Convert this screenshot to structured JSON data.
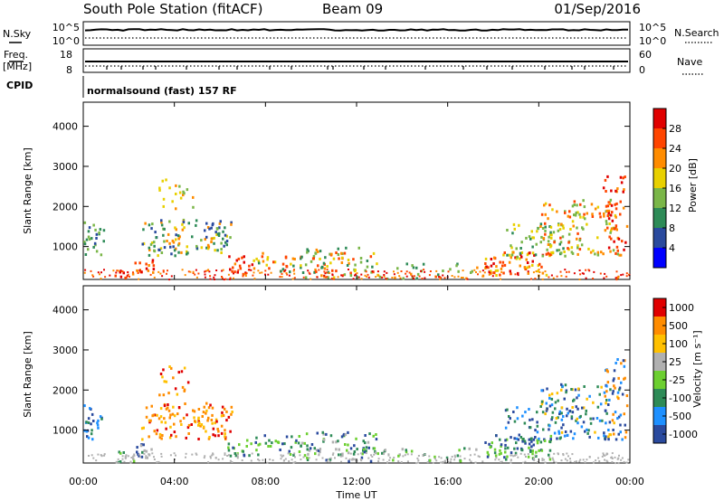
{
  "header": {
    "title": "South Pole Station (fitACF)",
    "beam": "Beam 09",
    "date": "01/Sep/2016"
  },
  "sky_panel": {
    "left_label": "N.Sky",
    "right_label": "N.Search",
    "left_ticks": [
      "10^5",
      "10^0"
    ],
    "right_ticks": [
      "10^5",
      "10^0"
    ]
  },
  "freq_panel": {
    "left_label_line1": "Freq.",
    "left_label_line2": "[MHz]",
    "right_label": "Nave",
    "left_ticks": [
      "18",
      "8"
    ],
    "right_ticks": [
      "60",
      "0"
    ]
  },
  "cpid": {
    "label": "CPID",
    "text": "normalsound (fast) 157 RF"
  },
  "chart_data": [
    {
      "type": "heatmap",
      "name": "power",
      "ylabel": "Slant Range [km]",
      "ylim": [
        180,
        4600
      ],
      "yticks": [
        "1000",
        "2000",
        "3000",
        "4000"
      ],
      "colorbar_label": "Power [dB]",
      "colorbar_ticks": [
        "4",
        "8",
        "12",
        "16",
        "20",
        "24",
        "28"
      ],
      "colors": [
        "#0000ff",
        "#2a4a9e",
        "#2e8b57",
        "#7ab648",
        "#e8d000",
        "#ff8c00",
        "#ff4500",
        "#e00000"
      ]
    },
    {
      "type": "heatmap",
      "name": "velocity",
      "ylabel": "Slant Range [km]",
      "ylim": [
        180,
        4600
      ],
      "yticks": [
        "1000",
        "2000",
        "3000",
        "4000"
      ],
      "colorbar_label": "Velocity [m s⁻¹]",
      "colorbar_ticks": [
        "1000",
        "500",
        "100",
        "25",
        "-25",
        "-100",
        "-500",
        "-1000"
      ],
      "colors": [
        "#2a4a9e",
        "#1e90ff",
        "#2e8b57",
        "#6ccf30",
        "#b0b0b0",
        "#ffc000",
        "#ff8c00",
        "#e00000"
      ]
    }
  ],
  "time_axis": {
    "label": "Time UT",
    "ticks": [
      "00:00",
      "04:00",
      "08:00",
      "12:00",
      "16:00",
      "20:00",
      "00:00"
    ]
  }
}
